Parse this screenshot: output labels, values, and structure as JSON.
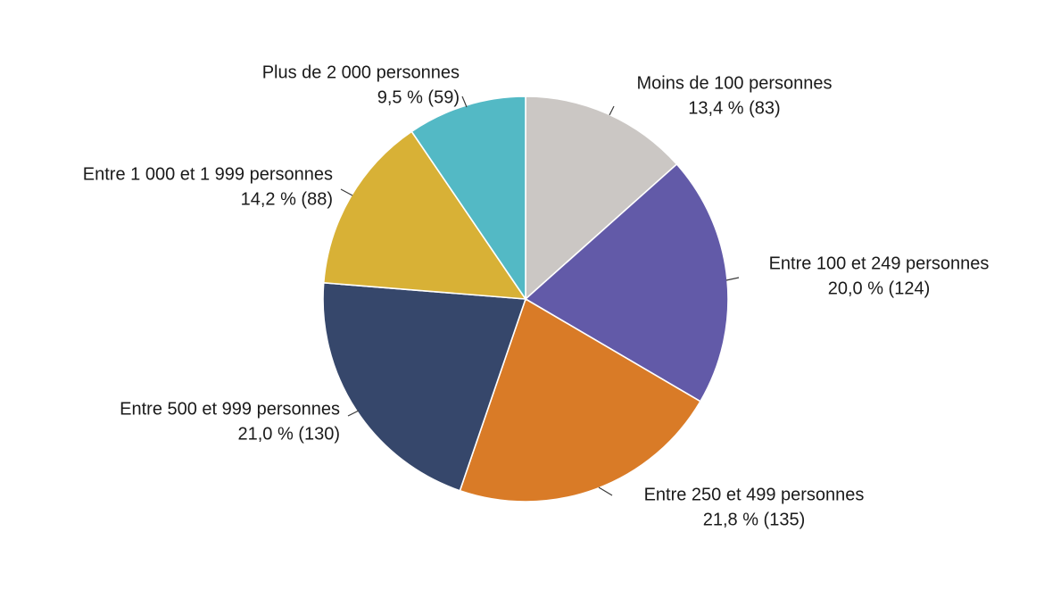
{
  "chart_data": {
    "type": "pie",
    "title": "",
    "start_angle_deg": 0,
    "direction": "clockwise",
    "legend": "none",
    "slices": [
      {
        "label": "Moins de 100 personnes",
        "value_label": "13,4 % (83)",
        "percent": 13.4,
        "count": 83,
        "color": "#cbc7c4"
      },
      {
        "label": "Entre 100 et 249 personnes",
        "value_label": "20,0 % (124)",
        "percent": 20.0,
        "count": 124,
        "color": "#625aa8"
      },
      {
        "label": "Entre 250 et 499 personnes",
        "value_label": "21,8 % (135)",
        "percent": 21.8,
        "count": 135,
        "color": "#d97b27"
      },
      {
        "label": "Entre 500 et 999 personnes",
        "value_label": "21,0 % (130)",
        "percent": 21.0,
        "count": 130,
        "color": "#36476b"
      },
      {
        "label": "Entre 1 000 et 1 999 personnes",
        "value_label": "14,2 % (88)",
        "percent": 14.2,
        "count": 88,
        "color": "#d8b136"
      },
      {
        "label": "Plus de 2 000 personnes",
        "value_label": "9,5 % (59)",
        "percent": 9.5,
        "count": 59,
        "color": "#53b9c5"
      }
    ]
  }
}
